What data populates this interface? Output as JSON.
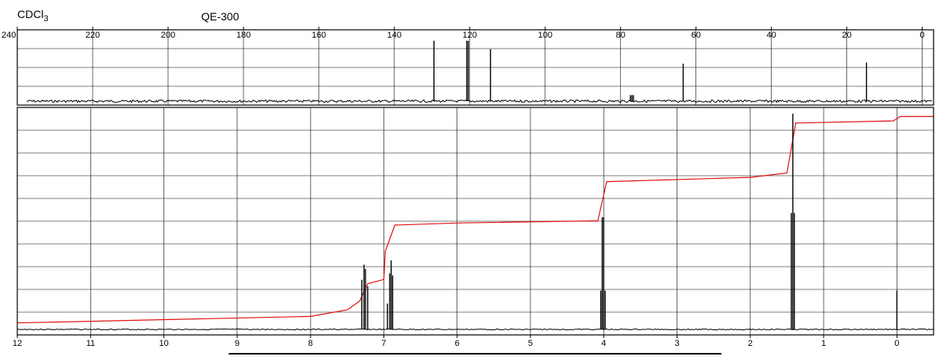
{
  "header": {
    "solvent_main": "CDCl",
    "solvent_sub": "3",
    "instrument": "QE-300"
  },
  "chart_data": [
    {
      "id": "c13",
      "type": "line",
      "title": "",
      "xlabel": "",
      "ylabel": "",
      "x_reversed": true,
      "xlim": [
        240,
        -3
      ],
      "x_ticks": [
        240,
        220,
        200,
        180,
        160,
        140,
        120,
        100,
        80,
        60,
        40,
        20,
        0
      ],
      "tick_labels": [
        "240",
        "220",
        "200",
        "180",
        "160",
        "140",
        "120",
        "100",
        "80",
        "60",
        "40",
        "20",
        "0"
      ],
      "baseline_relative_height": 0.0,
      "peaks": [
        {
          "x": 129.5,
          "rel_height": 1.0
        },
        {
          "x": 120.8,
          "rel_height": 1.0
        },
        {
          "x": 120.4,
          "rel_height": 1.0
        },
        {
          "x": 114.5,
          "rel_height": 0.86
        },
        {
          "x": 77.4,
          "rel_height": 0.1
        },
        {
          "x": 77.0,
          "rel_height": 0.1
        },
        {
          "x": 76.6,
          "rel_height": 0.1
        },
        {
          "x": 63.4,
          "rel_height": 0.62
        },
        {
          "x": 14.8,
          "rel_height": 0.64
        }
      ],
      "grid": true
    },
    {
      "id": "h1",
      "type": "line",
      "title": "",
      "xlabel": "",
      "ylabel": "",
      "x_reversed": true,
      "xlim": [
        12,
        -0.5
      ],
      "x_ticks": [
        12,
        11,
        10,
        9,
        8,
        7,
        6,
        5,
        4,
        3,
        2,
        1,
        0
      ],
      "tick_labels": [
        "12",
        "11",
        "10",
        "9",
        "8",
        "7",
        "6",
        "5",
        "4",
        "3",
        "2",
        "1",
        "0"
      ],
      "peaks": [
        {
          "x": 7.3,
          "rel_height": 0.23
        },
        {
          "x": 7.27,
          "rel_height": 0.3
        },
        {
          "x": 7.25,
          "rel_height": 0.28
        },
        {
          "x": 7.22,
          "rel_height": 0.2
        },
        {
          "x": 6.95,
          "rel_height": 0.12
        },
        {
          "x": 6.92,
          "rel_height": 0.26
        },
        {
          "x": 6.9,
          "rel_height": 0.32
        },
        {
          "x": 6.88,
          "rel_height": 0.25
        },
        {
          "x": 4.04,
          "rel_height": 0.18
        },
        {
          "x": 4.02,
          "rel_height": 0.52
        },
        {
          "x": 4.0,
          "rel_height": 0.52
        },
        {
          "x": 3.98,
          "rel_height": 0.18
        },
        {
          "x": 1.44,
          "rel_height": 0.54
        },
        {
          "x": 1.42,
          "rel_height": 1.0
        },
        {
          "x": 1.4,
          "rel_height": 0.54
        },
        {
          "x": 0.0,
          "rel_height": 0.18
        }
      ],
      "integral": {
        "color": "#e01010",
        "x": [
          12.0,
          8.0,
          7.5,
          7.33,
          7.22,
          7.0,
          6.98,
          6.85,
          6.0,
          4.08,
          3.96,
          2.0,
          1.5,
          1.38,
          0.05,
          -0.05,
          -0.5
        ],
        "y": [
          0.03,
          0.06,
          0.09,
          0.13,
          0.21,
          0.23,
          0.36,
          0.48,
          0.49,
          0.5,
          0.68,
          0.7,
          0.72,
          0.95,
          0.96,
          0.98,
          0.98
        ]
      },
      "grid": true
    }
  ]
}
